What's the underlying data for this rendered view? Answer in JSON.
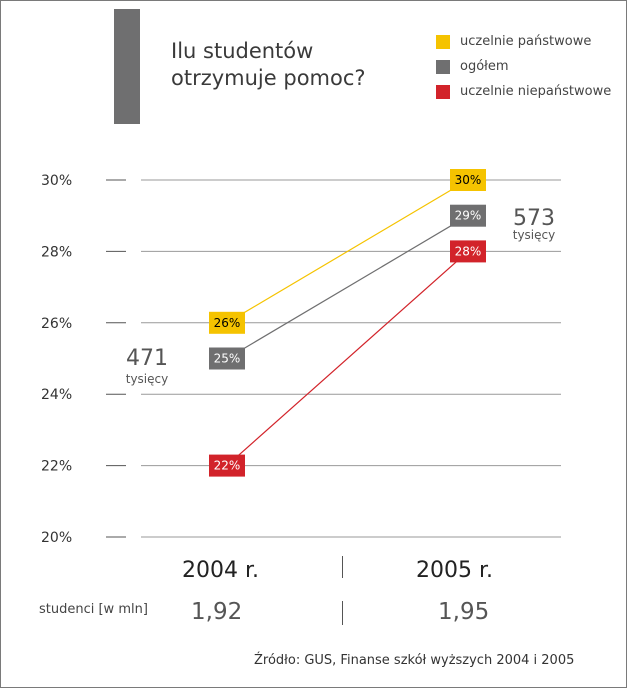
{
  "title": "Ilu studentów otrzymuje pomoc?",
  "colors": {
    "accent_bar": "#6f6f70",
    "state": "#f5c300",
    "total": "#6f6f70",
    "private": "#d2232a",
    "grid": "#999999"
  },
  "legend": [
    {
      "label": "uczelnie państwowe",
      "color": "#f5c300"
    },
    {
      "label": "ogółem",
      "color": "#6f6f70"
    },
    {
      "label": "uczelnie niepaństwowe",
      "color": "#d2232a"
    }
  ],
  "chart_data": {
    "type": "line",
    "categories": [
      "2004 r.",
      "2005 r."
    ],
    "yticks": [
      "30%",
      "28%",
      "26%",
      "24%",
      "22%",
      "20%"
    ],
    "ylim": [
      20,
      30
    ],
    "series": [
      {
        "name": "uczelnie państwowe",
        "color": "#f5c300",
        "values": [
          26,
          30
        ],
        "labels": [
          "26%",
          "30%"
        ]
      },
      {
        "name": "ogółem",
        "color": "#6f6f70",
        "values": [
          25,
          29
        ],
        "labels": [
          "25%",
          "29%"
        ]
      },
      {
        "name": "uczelnie niepaństwowe",
        "color": "#d2232a",
        "values": [
          22,
          28
        ],
        "labels": [
          "22%",
          "28%"
        ]
      }
    ],
    "annotations": [
      {
        "number": "471",
        "unit": "tysięcy",
        "category": "2004 r."
      },
      {
        "number": "573",
        "unit": "tysięcy",
        "category": "2005 r."
      }
    ],
    "grid": true
  },
  "students": {
    "label": "studenci [w mln]",
    "values": [
      "1,92",
      "1,95"
    ]
  },
  "source": "Źródło: GUS, Finanse szkół wyższych 2004 i 2005"
}
